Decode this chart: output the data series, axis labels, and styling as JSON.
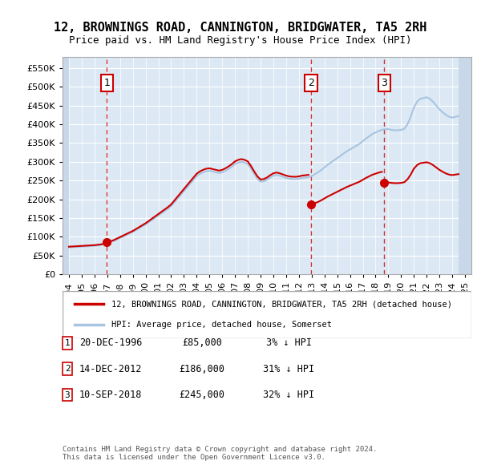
{
  "title": "12, BROWNINGS ROAD, CANNINGTON, BRIDGWATER, TA5 2RH",
  "subtitle": "Price paid vs. HM Land Registry's House Price Index (HPI)",
  "ylabel_ticks": [
    "£0",
    "£50K",
    "£100K",
    "£150K",
    "£200K",
    "£250K",
    "£300K",
    "£350K",
    "£400K",
    "£450K",
    "£500K",
    "£550K"
  ],
  "ytick_values": [
    0,
    50000,
    100000,
    150000,
    200000,
    250000,
    300000,
    350000,
    400000,
    450000,
    500000,
    550000
  ],
  "ylim": [
    0,
    580000
  ],
  "xlim_start": 1993.5,
  "xlim_end": 2025.5,
  "hpi_color": "#a8c4e0",
  "price_color": "#cc0000",
  "vline_color": "#cc0000",
  "sale_dates": [
    1996.97,
    2012.96,
    2018.69
  ],
  "sale_prices": [
    85000,
    186000,
    245000
  ],
  "sale_labels": [
    "1",
    "2",
    "3"
  ],
  "legend_property": "12, BROWNINGS ROAD, CANNINGTON, BRIDGWATER, TA5 2RH (detached house)",
  "legend_hpi": "HPI: Average price, detached house, Somerset",
  "table_data": [
    [
      "1",
      "20-DEC-1996",
      "£85,000",
      "3% ↓ HPI"
    ],
    [
      "2",
      "14-DEC-2012",
      "£186,000",
      "31% ↓ HPI"
    ],
    [
      "3",
      "10-SEP-2018",
      "£245,000",
      "32% ↓ HPI"
    ]
  ],
  "footnote": "Contains HM Land Registry data © Crown copyright and database right 2024.\nThis data is licensed under the Open Government Licence v3.0.",
  "background_chart": "#dce9f5",
  "background_hatch": "#c8d8e8",
  "grid_color": "#ffffff",
  "hpi_data_x": [
    1994.0,
    1994.25,
    1994.5,
    1994.75,
    1995.0,
    1995.25,
    1995.5,
    1995.75,
    1996.0,
    1996.25,
    1996.5,
    1996.75,
    1997.0,
    1997.25,
    1997.5,
    1997.75,
    1998.0,
    1998.25,
    1998.5,
    1998.75,
    1999.0,
    1999.25,
    1999.5,
    1999.75,
    2000.0,
    2000.25,
    2000.5,
    2000.75,
    2001.0,
    2001.25,
    2001.5,
    2001.75,
    2002.0,
    2002.25,
    2002.5,
    2002.75,
    2003.0,
    2003.25,
    2003.5,
    2003.75,
    2004.0,
    2004.25,
    2004.5,
    2004.75,
    2005.0,
    2005.25,
    2005.5,
    2005.75,
    2006.0,
    2006.25,
    2006.5,
    2006.75,
    2007.0,
    2007.25,
    2007.5,
    2007.75,
    2008.0,
    2008.25,
    2008.5,
    2008.75,
    2009.0,
    2009.25,
    2009.5,
    2009.75,
    2010.0,
    2010.25,
    2010.5,
    2010.75,
    2011.0,
    2011.25,
    2011.5,
    2011.75,
    2012.0,
    2012.25,
    2012.5,
    2012.75,
    2013.0,
    2013.25,
    2013.5,
    2013.75,
    2014.0,
    2014.25,
    2014.5,
    2014.75,
    2015.0,
    2015.25,
    2015.5,
    2015.75,
    2016.0,
    2016.25,
    2016.5,
    2016.75,
    2017.0,
    2017.25,
    2017.5,
    2017.75,
    2018.0,
    2018.25,
    2018.5,
    2018.75,
    2019.0,
    2019.25,
    2019.5,
    2019.75,
    2020.0,
    2020.25,
    2020.5,
    2020.75,
    2021.0,
    2021.25,
    2021.5,
    2021.75,
    2022.0,
    2022.25,
    2022.5,
    2022.75,
    2023.0,
    2023.25,
    2023.5,
    2023.75,
    2024.0,
    2024.25,
    2024.5
  ],
  "hpi_data_y": [
    72000,
    72500,
    73000,
    73500,
    74000,
    74500,
    75000,
    75500,
    76000,
    77000,
    78000,
    80000,
    83000,
    86000,
    89000,
    93000,
    97000,
    101000,
    105000,
    109000,
    113000,
    118000,
    123000,
    128000,
    133000,
    139000,
    145000,
    151000,
    157000,
    163000,
    169000,
    175000,
    182000,
    192000,
    202000,
    212000,
    222000,
    232000,
    242000,
    252000,
    262000,
    268000,
    272000,
    275000,
    276000,
    274000,
    272000,
    270000,
    272000,
    276000,
    281000,
    287000,
    294000,
    298000,
    300000,
    298000,
    294000,
    282000,
    268000,
    255000,
    247000,
    248000,
    252000,
    258000,
    263000,
    265000,
    263000,
    260000,
    257000,
    255000,
    254000,
    254000,
    255000,
    257000,
    258000,
    259000,
    262000,
    267000,
    272000,
    278000,
    285000,
    292000,
    298000,
    304000,
    310000,
    316000,
    322000,
    328000,
    333000,
    338000,
    343000,
    348000,
    355000,
    362000,
    368000,
    374000,
    378000,
    382000,
    385000,
    387000,
    387000,
    385000,
    384000,
    384000,
    385000,
    388000,
    400000,
    420000,
    445000,
    460000,
    468000,
    470000,
    472000,
    468000,
    460000,
    450000,
    440000,
    432000,
    425000,
    420000,
    418000,
    420000,
    422000
  ]
}
